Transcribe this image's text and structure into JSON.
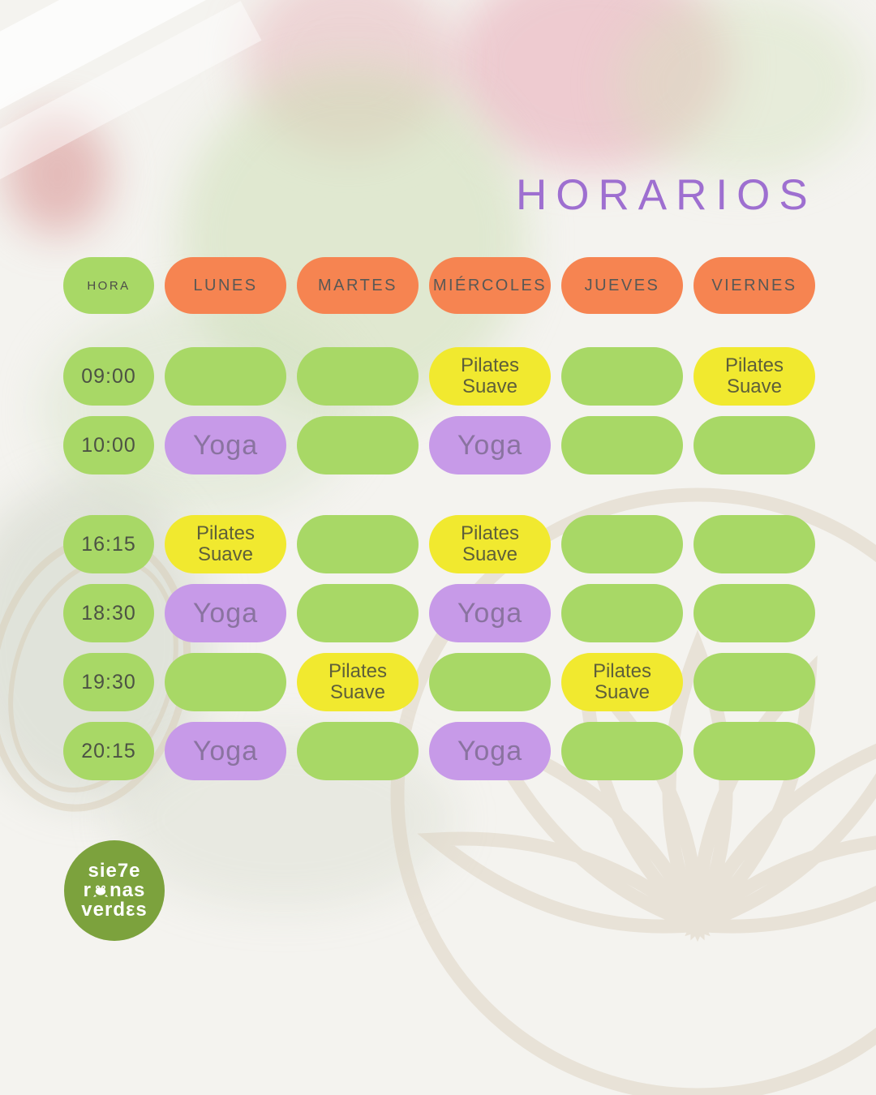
{
  "title": "HORARIOS",
  "colors": {
    "bg": "#f4f3ef",
    "title": "#9e6fd0",
    "green": "#a8d866",
    "orange": "#f68451",
    "yellow": "#f1e92f",
    "purple": "#c79ae8",
    "logoGreen": "#7ca23d",
    "mandala": "#ddd2c0"
  },
  "schedule": {
    "hora_header": "HORA",
    "days": [
      "LUNES",
      "MARTES",
      "MIÉRCOLES",
      "JUEVES",
      "VIERNES"
    ],
    "rows": [
      {
        "time": "09:00",
        "cells": [
          {
            "type": "empty",
            "label": ""
          },
          {
            "type": "empty",
            "label": ""
          },
          {
            "type": "pilates",
            "label": "Pilates\nSuave"
          },
          {
            "type": "empty",
            "label": ""
          },
          {
            "type": "pilates",
            "label": "Pilates\nSuave"
          }
        ]
      },
      {
        "time": "10:00",
        "cells": [
          {
            "type": "yoga",
            "label": "Yoga"
          },
          {
            "type": "empty",
            "label": ""
          },
          {
            "type": "yoga",
            "label": "Yoga"
          },
          {
            "type": "empty",
            "label": ""
          },
          {
            "type": "empty",
            "label": ""
          }
        ]
      },
      {
        "time": "16:15",
        "cells": [
          {
            "type": "pilates",
            "label": "Pilates\nSuave"
          },
          {
            "type": "empty",
            "label": ""
          },
          {
            "type": "pilates",
            "label": "Pilates\nSuave"
          },
          {
            "type": "empty",
            "label": ""
          },
          {
            "type": "empty",
            "label": ""
          }
        ]
      },
      {
        "time": "18:30",
        "cells": [
          {
            "type": "yoga",
            "label": "Yoga"
          },
          {
            "type": "empty",
            "label": ""
          },
          {
            "type": "yoga",
            "label": "Yoga"
          },
          {
            "type": "empty",
            "label": ""
          },
          {
            "type": "empty",
            "label": ""
          }
        ]
      },
      {
        "time": "19:30",
        "cells": [
          {
            "type": "empty",
            "label": ""
          },
          {
            "type": "pilates",
            "label": "Pilates\nSuave"
          },
          {
            "type": "empty",
            "label": ""
          },
          {
            "type": "pilates",
            "label": "Pilates\nSuave"
          },
          {
            "type": "empty",
            "label": ""
          }
        ]
      },
      {
        "time": "20:15",
        "cells": [
          {
            "type": "yoga",
            "label": "Yoga"
          },
          {
            "type": "empty",
            "label": ""
          },
          {
            "type": "yoga",
            "label": "Yoga"
          },
          {
            "type": "empty",
            "label": ""
          },
          {
            "type": "empty",
            "label": ""
          }
        ]
      }
    ]
  },
  "logo": {
    "line1": "sie7e",
    "line2_pre": "r",
    "line2_post": "nas",
    "line3": "verdεs"
  }
}
